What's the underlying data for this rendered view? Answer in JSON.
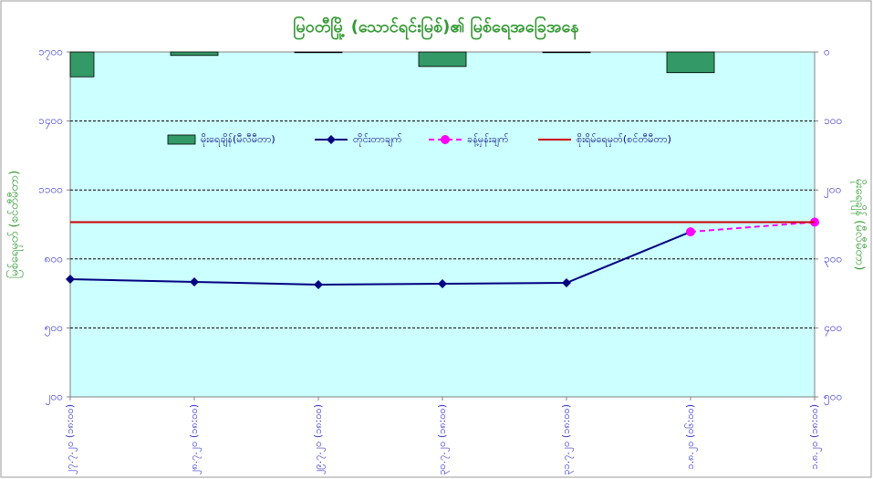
{
  "chart_data": {
    "type": "combo",
    "title": "မြဝတီမြို့ (သောင်ရင်းမြစ်)၏ မြစ်ရေအခြေအနေ",
    "y_label": "မြစ်ရေမှတ် (စင်တီမီတာ)",
    "y2_label": "မိုးရေချိန် (မီလီမီတာ)",
    "categories": [
      "၂၇.၇.၂၀ (၁၈:၀၀)",
      "၂၈.၇.၂၀ (၁၈:၀၀)",
      "၂၉.၇.၂၀ (၁၈:၀၀)",
      "၃၀.၇.၂၀ (၁၈:၀၀)",
      "၃၁.၇.၂၀ (၁၈:၀၀)",
      "၁.၈.၂၀ (၀၆:၀၀)",
      "၁.၈.၂၀ (၁၈:၀၀)"
    ],
    "series": [
      {
        "name": "မိုးရေချိန်(မီလီမီတာ)",
        "type": "bar",
        "axis": "y2",
        "color": "#339966",
        "values": [
          36,
          5,
          1,
          21,
          1,
          30,
          0
        ]
      },
      {
        "name": "တိုင်းတာချက်",
        "type": "line",
        "marker": "diamond",
        "color": "#000080",
        "values": [
          712,
          700,
          688,
          692,
          696,
          918,
          null
        ]
      },
      {
        "name": "ခန့်မှန်းချက်",
        "type": "line",
        "marker": "circle",
        "dashed": true,
        "color": "#ff00ff",
        "values": [
          null,
          null,
          null,
          null,
          null,
          918,
          960
        ]
      },
      {
        "name": "စိုးရိမ်ရေမှတ်(စင်တီမီတာ)",
        "type": "line",
        "color": "#cc0000",
        "values": [
          960,
          960,
          960,
          960,
          960,
          960,
          960
        ]
      }
    ],
    "ylim": [
      200,
      1700
    ],
    "yticks": [
      {
        "value": 200,
        "label": "၂၀၀"
      },
      {
        "value": 500,
        "label": "၅၀၀"
      },
      {
        "value": 800,
        "label": "၈၀၀"
      },
      {
        "value": 1100,
        "label": "၁၁၀၀"
      },
      {
        "value": 1400,
        "label": "၁၄၀၀"
      },
      {
        "value": 1700,
        "label": "၁၇၀၀"
      }
    ],
    "y2lim": [
      0,
      500
    ],
    "y2_reversed": true,
    "y2ticks": [
      {
        "value": 0,
        "label": "၀"
      },
      {
        "value": 100,
        "label": "၁၀၀"
      },
      {
        "value": 200,
        "label": "၂၀၀"
      },
      {
        "value": 300,
        "label": "၃၀၀"
      },
      {
        "value": 400,
        "label": "၄၀၀"
      },
      {
        "value": 500,
        "label": "၅၀၀"
      }
    ],
    "grid": true,
    "plot_color": "#ccffff"
  }
}
